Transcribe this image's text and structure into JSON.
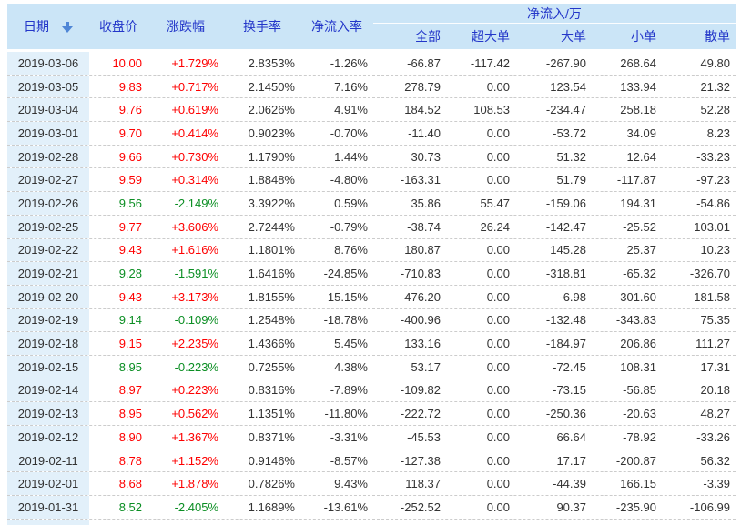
{
  "header": {
    "col_date": "日期",
    "col_close": "收盘价",
    "col_change": "涨跌幅",
    "col_turnover": "换手率",
    "col_inflow_rate": "净流入率",
    "group_net_inflow": "净流入/万",
    "sub_all": "全部",
    "sub_super_large": "超大单",
    "sub_large": "大单",
    "sub_small": "小单",
    "sub_scatter": "散单"
  },
  "colors": {
    "up": "#fe0000",
    "down": "#0b8e23",
    "header_bg": "#cbe5f7",
    "header_text": "#2336c9",
    "date_bg": "#e2f0fa",
    "text": "#333333"
  },
  "rows": [
    {
      "date": "2019-03-06",
      "close": "10.00",
      "change": "+1.729%",
      "turnover": "2.8353%",
      "inflow_rate": "-1.26%",
      "all": "-66.87",
      "super_large": "-117.42",
      "large": "-267.90",
      "small": "268.64",
      "scatter": "49.80"
    },
    {
      "date": "2019-03-05",
      "close": "9.83",
      "change": "+0.717%",
      "turnover": "2.1450%",
      "inflow_rate": "7.16%",
      "all": "278.79",
      "super_large": "0.00",
      "large": "123.54",
      "small": "133.94",
      "scatter": "21.32"
    },
    {
      "date": "2019-03-04",
      "close": "9.76",
      "change": "+0.619%",
      "turnover": "2.0626%",
      "inflow_rate": "4.91%",
      "all": "184.52",
      "super_large": "108.53",
      "large": "-234.47",
      "small": "258.18",
      "scatter": "52.28"
    },
    {
      "date": "2019-03-01",
      "close": "9.70",
      "change": "+0.414%",
      "turnover": "0.9023%",
      "inflow_rate": "-0.70%",
      "all": "-11.40",
      "super_large": "0.00",
      "large": "-53.72",
      "small": "34.09",
      "scatter": "8.23"
    },
    {
      "date": "2019-02-28",
      "close": "9.66",
      "change": "+0.730%",
      "turnover": "1.1790%",
      "inflow_rate": "1.44%",
      "all": "30.73",
      "super_large": "0.00",
      "large": "51.32",
      "small": "12.64",
      "scatter": "-33.23"
    },
    {
      "date": "2019-02-27",
      "close": "9.59",
      "change": "+0.314%",
      "turnover": "1.8848%",
      "inflow_rate": "-4.80%",
      "all": "-163.31",
      "super_large": "0.00",
      "large": "51.79",
      "small": "-117.87",
      "scatter": "-97.23"
    },
    {
      "date": "2019-02-26",
      "close": "9.56",
      "change": "-2.149%",
      "turnover": "3.3922%",
      "inflow_rate": "0.59%",
      "all": "35.86",
      "super_large": "55.47",
      "large": "-159.06",
      "small": "194.31",
      "scatter": "-54.86"
    },
    {
      "date": "2019-02-25",
      "close": "9.77",
      "change": "+3.606%",
      "turnover": "2.7244%",
      "inflow_rate": "-0.79%",
      "all": "-38.74",
      "super_large": "26.24",
      "large": "-142.47",
      "small": "-25.52",
      "scatter": "103.01"
    },
    {
      "date": "2019-02-22",
      "close": "9.43",
      "change": "+1.616%",
      "turnover": "1.1801%",
      "inflow_rate": "8.76%",
      "all": "180.87",
      "super_large": "0.00",
      "large": "145.28",
      "small": "25.37",
      "scatter": "10.23"
    },
    {
      "date": "2019-02-21",
      "close": "9.28",
      "change": "-1.591%",
      "turnover": "1.6416%",
      "inflow_rate": "-24.85%",
      "all": "-710.83",
      "super_large": "0.00",
      "large": "-318.81",
      "small": "-65.32",
      "scatter": "-326.70"
    },
    {
      "date": "2019-02-20",
      "close": "9.43",
      "change": "+3.173%",
      "turnover": "1.8155%",
      "inflow_rate": "15.15%",
      "all": "476.20",
      "super_large": "0.00",
      "large": "-6.98",
      "small": "301.60",
      "scatter": "181.58"
    },
    {
      "date": "2019-02-19",
      "close": "9.14",
      "change": "-0.109%",
      "turnover": "1.2548%",
      "inflow_rate": "-18.78%",
      "all": "-400.96",
      "super_large": "0.00",
      "large": "-132.48",
      "small": "-343.83",
      "scatter": "75.35"
    },
    {
      "date": "2019-02-18",
      "close": "9.15",
      "change": "+2.235%",
      "turnover": "1.4366%",
      "inflow_rate": "5.45%",
      "all": "133.16",
      "super_large": "0.00",
      "large": "-184.97",
      "small": "206.86",
      "scatter": "111.27"
    },
    {
      "date": "2019-02-15",
      "close": "8.95",
      "change": "-0.223%",
      "turnover": "0.7255%",
      "inflow_rate": "4.38%",
      "all": "53.17",
      "super_large": "0.00",
      "large": "-72.45",
      "small": "108.31",
      "scatter": "17.31"
    },
    {
      "date": "2019-02-14",
      "close": "8.97",
      "change": "+0.223%",
      "turnover": "0.8316%",
      "inflow_rate": "-7.89%",
      "all": "-109.82",
      "super_large": "0.00",
      "large": "-73.15",
      "small": "-56.85",
      "scatter": "20.18"
    },
    {
      "date": "2019-02-13",
      "close": "8.95",
      "change": "+0.562%",
      "turnover": "1.1351%",
      "inflow_rate": "-11.80%",
      "all": "-222.72",
      "super_large": "0.00",
      "large": "-250.36",
      "small": "-20.63",
      "scatter": "48.27"
    },
    {
      "date": "2019-02-12",
      "close": "8.90",
      "change": "+1.367%",
      "turnover": "0.8371%",
      "inflow_rate": "-3.31%",
      "all": "-45.53",
      "super_large": "0.00",
      "large": "66.64",
      "small": "-78.92",
      "scatter": "-33.26"
    },
    {
      "date": "2019-02-11",
      "close": "8.78",
      "change": "+1.152%",
      "turnover": "0.9146%",
      "inflow_rate": "-8.57%",
      "all": "-127.38",
      "super_large": "0.00",
      "large": "17.17",
      "small": "-200.87",
      "scatter": "56.32"
    },
    {
      "date": "2019-02-01",
      "close": "8.68",
      "change": "+1.878%",
      "turnover": "0.7826%",
      "inflow_rate": "9.43%",
      "all": "118.37",
      "super_large": "0.00",
      "large": "-44.39",
      "small": "166.15",
      "scatter": "-3.39"
    },
    {
      "date": "2019-01-31",
      "close": "8.52",
      "change": "-2.405%",
      "turnover": "1.1689%",
      "inflow_rate": "-13.61%",
      "all": "-252.52",
      "super_large": "0.00",
      "large": "90.37",
      "small": "-235.90",
      "scatter": "-106.99"
    }
  ]
}
